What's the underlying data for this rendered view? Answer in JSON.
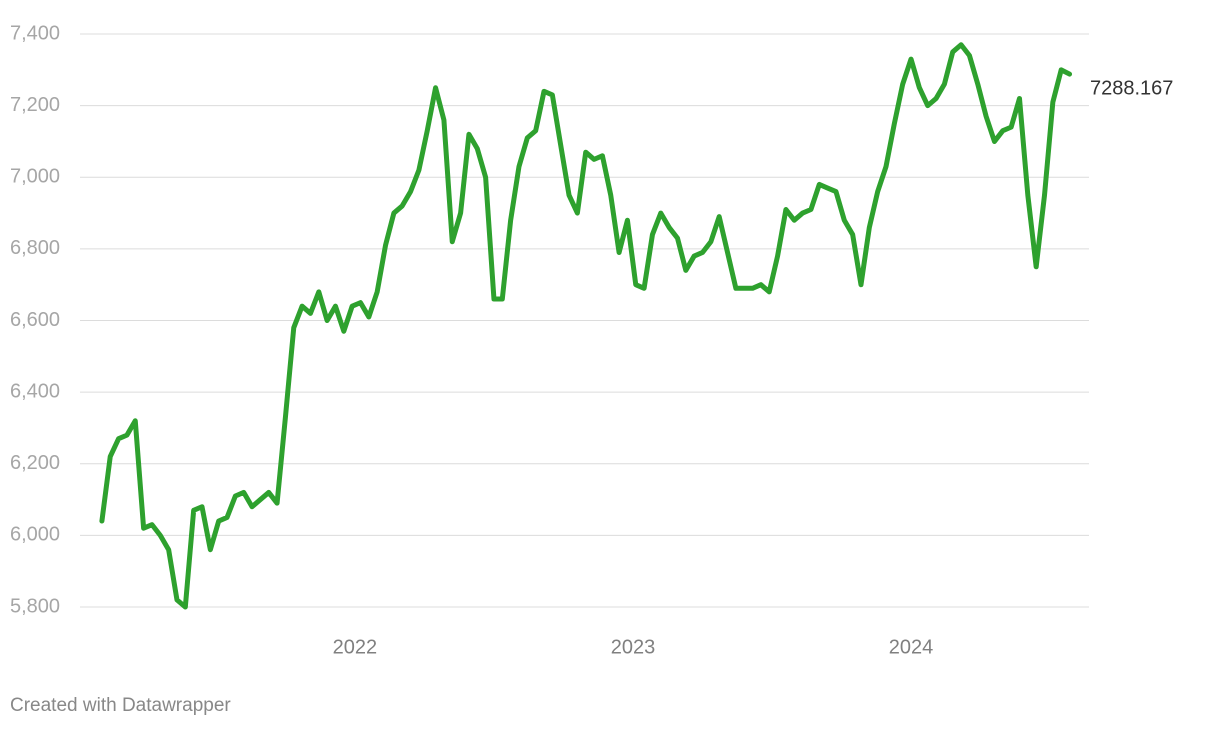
{
  "chart_data": {
    "type": "line",
    "credit": "Created with Datawrapper",
    "color": "#2ea12e",
    "grid": true,
    "xlim": [
      2021.04,
      2024.64
    ],
    "xticks": [
      2022,
      2023,
      2024
    ],
    "ylim": [
      5740,
      7440
    ],
    "yticks": [
      {
        "value": 5800,
        "label": "5,800"
      },
      {
        "value": 6000,
        "label": "6,000"
      },
      {
        "value": 6200,
        "label": "6,200"
      },
      {
        "value": 6400,
        "label": "6,400"
      },
      {
        "value": 6600,
        "label": "6,600"
      },
      {
        "value": 6800,
        "label": "6,800"
      },
      {
        "value": 7000,
        "label": "7,000"
      },
      {
        "value": 7200,
        "label": "7,200"
      },
      {
        "value": 7400,
        "label": "7,400"
      }
    ],
    "x": [
      2021.09,
      2021.12,
      2021.15,
      2021.18,
      2021.21,
      2021.24,
      2021.27,
      2021.3,
      2021.33,
      2021.36,
      2021.39,
      2021.42,
      2021.45,
      2021.48,
      2021.51,
      2021.54,
      2021.57,
      2021.6,
      2021.63,
      2021.66,
      2021.69,
      2021.72,
      2021.75,
      2021.78,
      2021.81,
      2021.84,
      2021.87,
      2021.9,
      2021.93,
      2021.96,
      2021.99,
      2022.02,
      2022.05,
      2022.08,
      2022.11,
      2022.14,
      2022.17,
      2022.2,
      2022.23,
      2022.26,
      2022.29,
      2022.32,
      2022.35,
      2022.38,
      2022.41,
      2022.44,
      2022.47,
      2022.5,
      2022.53,
      2022.56,
      2022.59,
      2022.62,
      2022.65,
      2022.68,
      2022.71,
      2022.74,
      2022.77,
      2022.8,
      2022.83,
      2022.86,
      2022.89,
      2022.92,
      2022.95,
      2022.98,
      2023.01,
      2023.04,
      2023.07,
      2023.1,
      2023.13,
      2023.16,
      2023.19,
      2023.22,
      2023.25,
      2023.28,
      2023.31,
      2023.34,
      2023.37,
      2023.4,
      2023.43,
      2023.46,
      2023.49,
      2023.52,
      2023.55,
      2023.58,
      2023.61,
      2023.64,
      2023.67,
      2023.7,
      2023.73,
      2023.76,
      2023.79,
      2023.82,
      2023.85,
      2023.88,
      2023.91,
      2023.94,
      2023.97,
      2024.0,
      2024.03,
      2024.06,
      2024.09,
      2024.12,
      2024.15,
      2024.18,
      2024.21,
      2024.24,
      2024.27,
      2024.3,
      2024.33,
      2024.36,
      2024.39,
      2024.42,
      2024.45,
      2024.48,
      2024.51,
      2024.54,
      2024.57
    ],
    "values": [
      6040,
      6220,
      6270,
      6280,
      6320,
      6020,
      6030,
      6000,
      5960,
      5820,
      5800,
      6070,
      6080,
      5960,
      6040,
      6050,
      6110,
      6120,
      6080,
      6100,
      6120,
      6090,
      6330,
      6580,
      6640,
      6620,
      6680,
      6600,
      6640,
      6570,
      6640,
      6650,
      6610,
      6680,
      6810,
      6900,
      6920,
      6960,
      7020,
      7130,
      7250,
      7160,
      6820,
      6900,
      7120,
      7080,
      7000,
      6660,
      6660,
      6880,
      7030,
      7110,
      7130,
      7240,
      7230,
      7090,
      6950,
      6900,
      7070,
      7050,
      7060,
      6950,
      6790,
      6880,
      6700,
      6690,
      6840,
      6900,
      6860,
      6830,
      6740,
      6780,
      6790,
      6820,
      6890,
      6790,
      6690,
      6690,
      6690,
      6700,
      6680,
      6780,
      6910,
      6880,
      6900,
      6910,
      6980,
      6970,
      6960,
      6880,
      6840,
      6700,
      6860,
      6960,
      7030,
      7150,
      7260,
      7330,
      7250,
      7200,
      7220,
      7260,
      7350,
      7370,
      7340,
      7260,
      7170,
      7100,
      7130,
      7140,
      7220,
      6950,
      6750,
      6950,
      7210,
      7300,
      7288.167
    ]
  }
}
